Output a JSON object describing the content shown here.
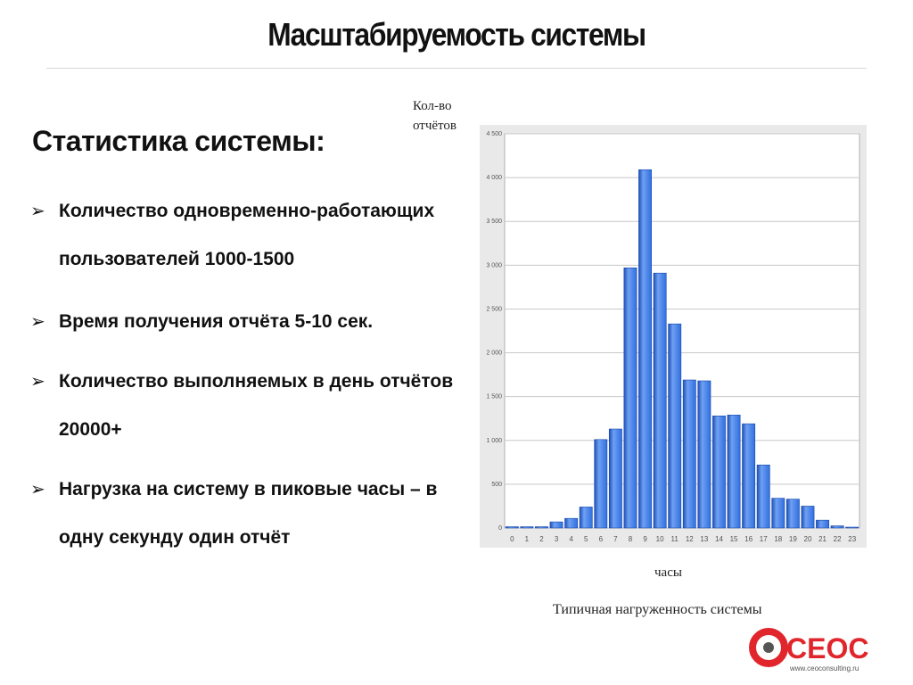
{
  "slide": {
    "title": "Масштабируемость системы",
    "subtitle": "Статистика системы:",
    "bullets": [
      "Количество одновременно-работающих пользователей  1000-1500",
      "Время получения отчёта 5-10 сек.",
      "Количество выполняемых в день отчётов 20000+",
      "Нагрузка на систему в пиковые часы – в одну секунду один отчёт"
    ],
    "bullet_icon": "arrow-bullet-icon"
  },
  "chart_data": {
    "type": "bar",
    "ylabel_lines": [
      "Кол-во",
      "отчётов"
    ],
    "xlabel": "часы",
    "caption": "Типичная нагруженность системы",
    "categories": [
      "0",
      "1",
      "2",
      "3",
      "4",
      "5",
      "6",
      "7",
      "8",
      "9",
      "10",
      "11",
      "12",
      "13",
      "14",
      "15",
      "16",
      "17",
      "18",
      "19",
      "20",
      "21",
      "22",
      "23"
    ],
    "values": [
      15,
      15,
      15,
      70,
      110,
      240,
      1010,
      1130,
      2970,
      4090,
      2910,
      2330,
      1690,
      1680,
      1280,
      1290,
      1190,
      720,
      340,
      330,
      250,
      90,
      25,
      5
    ],
    "ylim": [
      0,
      4500
    ],
    "yticks": [
      "0",
      "500",
      "1 000",
      "1 500",
      "2 000",
      "2 500",
      "3 000",
      "3 500",
      "4 000",
      "4 500"
    ],
    "ytick_values": [
      0,
      500,
      1000,
      1500,
      2000,
      2500,
      3000,
      3500,
      4000,
      4500
    ],
    "grid": true,
    "colors": {
      "bar": "#2f6fe0",
      "bar_light": "#6fa0f2",
      "bar_dark": "#1c4fb8",
      "grid": "#c8c8c8",
      "panel": "#ffffff",
      "frame": "#e9e9e9"
    }
  },
  "logo": {
    "text": "CEOC",
    "url": "www.ceoconsulting.ru",
    "colors": {
      "red": "#e0262c",
      "grey": "#555555"
    }
  }
}
